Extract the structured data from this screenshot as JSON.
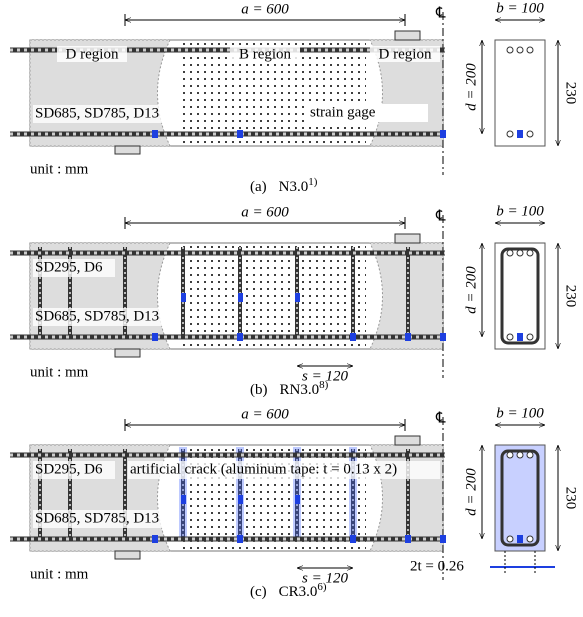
{
  "centerline": "℄",
  "panels": [
    {
      "a": "a = 600",
      "b": "b = 100",
      "d": "d = 200",
      "h": "230",
      "regions": [
        "D region",
        "B region",
        "D region"
      ],
      "main_bar": "SD685, SD785, D13",
      "gage": "strain gage",
      "unit": "unit : mm",
      "caption": {
        "label": "(a)",
        "name": "N3.0",
        "ref": "1)"
      }
    },
    {
      "a": "a = 600",
      "b": "b = 100",
      "d": "d = 200",
      "h": "230",
      "stirrup": "SD295, D6",
      "main_bar": "SD685, SD785, D13",
      "s": "s = 120",
      "unit": "unit : mm",
      "caption": {
        "label": "(b)",
        "name": "RN3.0",
        "ref": "8)"
      }
    },
    {
      "a": "a = 600",
      "b": "b = 100",
      "d": "d = 200",
      "h": "230",
      "stirrup": "SD295, D6",
      "crack": "artificial crack (aluminum tape: t = 0.13 x 2)",
      "main_bar": "SD685, SD785, D13",
      "s": "s = 120",
      "tape": "2t = 0.26",
      "unit": "unit : mm",
      "caption": {
        "label": "(c)",
        "name": "CR3.0",
        "ref": "6)"
      }
    }
  ]
}
